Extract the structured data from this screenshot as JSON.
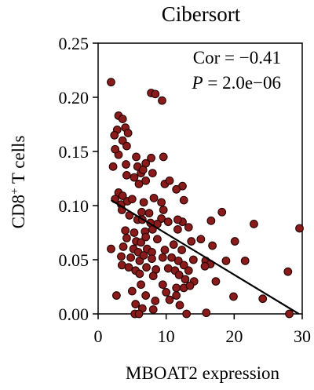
{
  "chart_data": {
    "type": "scatter",
    "title": "Cibersort",
    "xlabel": "MBOAT2 expression",
    "ylabel": {
      "base": "CD8",
      "sup": "+",
      "rest": " T cells"
    },
    "xlim": [
      0,
      30
    ],
    "ylim": [
      0,
      0.25
    ],
    "xticks": [
      0,
      10,
      20,
      30
    ],
    "xtick_labels": [
      "0",
      "10",
      "20",
      "30"
    ],
    "yticks": [
      0,
      0.05,
      0.1,
      0.15,
      0.2,
      0.25
    ],
    "ytick_labels": [
      "0.00",
      "0.05",
      "0.10",
      "0.15",
      "0.20",
      "0.25"
    ],
    "annotations": {
      "cor": "Cor = −0.41",
      "p_label": "P",
      "p_value": " = 2.0e−06"
    },
    "marker_color": "#8b1a1a",
    "marker_edge": "#2a0808",
    "fit_line": {
      "x": [
        1.9,
        29.5
      ],
      "y": [
        0.105,
        0.0
      ],
      "color": "#000000"
    },
    "points": [
      [
        1.9,
        0.214
      ],
      [
        7.8,
        0.204
      ],
      [
        8.4,
        0.203
      ],
      [
        9.4,
        0.197
      ],
      [
        3.0,
        0.183
      ],
      [
        3.6,
        0.18
      ],
      [
        2.8,
        0.17
      ],
      [
        4.0,
        0.172
      ],
      [
        4.4,
        0.167
      ],
      [
        3.6,
        0.16
      ],
      [
        2.4,
        0.165
      ],
      [
        4.2,
        0.155
      ],
      [
        5.6,
        0.145
      ],
      [
        7.8,
        0.144
      ],
      [
        9.6,
        0.145
      ],
      [
        3.0,
        0.147
      ],
      [
        2.5,
        0.152
      ],
      [
        2.2,
        0.136
      ],
      [
        4.1,
        0.138
      ],
      [
        5.8,
        0.136
      ],
      [
        6.3,
        0.13
      ],
      [
        7.0,
        0.139
      ],
      [
        6.6,
        0.133
      ],
      [
        5.3,
        0.126
      ],
      [
        4.2,
        0.128
      ],
      [
        8.0,
        0.13
      ],
      [
        6.0,
        0.12
      ],
      [
        7.0,
        0.123
      ],
      [
        9.8,
        0.12
      ],
      [
        10.5,
        0.123
      ],
      [
        12.4,
        0.118
      ],
      [
        11.5,
        0.115
      ],
      [
        3.0,
        0.112
      ],
      [
        3.6,
        0.109
      ],
      [
        2.5,
        0.106
      ],
      [
        3.4,
        0.101
      ],
      [
        4.3,
        0.104
      ],
      [
        5.0,
        0.106
      ],
      [
        6.7,
        0.103
      ],
      [
        8.2,
        0.107
      ],
      [
        9.3,
        0.103
      ],
      [
        9.6,
        0.096
      ],
      [
        12.6,
        0.105
      ],
      [
        7.5,
        0.093
      ],
      [
        6.4,
        0.094
      ],
      [
        4.6,
        0.091
      ],
      [
        3.5,
        0.096
      ],
      [
        5.8,
        0.087
      ],
      [
        9.3,
        0.088
      ],
      [
        10.3,
        0.085
      ],
      [
        12.4,
        0.085
      ],
      [
        8.7,
        0.083
      ],
      [
        11.7,
        0.087
      ],
      [
        6.5,
        0.087
      ],
      [
        7.7,
        0.084
      ],
      [
        4.0,
        0.077
      ],
      [
        5.3,
        0.075
      ],
      [
        6.9,
        0.076
      ],
      [
        8.0,
        0.078
      ],
      [
        11.7,
        0.078
      ],
      [
        13.3,
        0.08
      ],
      [
        18.2,
        0.094
      ],
      [
        16.6,
        0.086
      ],
      [
        22.9,
        0.083
      ],
      [
        29.6,
        0.079
      ],
      [
        4.2,
        0.07
      ],
      [
        5.6,
        0.067
      ],
      [
        6.3,
        0.066
      ],
      [
        7.0,
        0.071
      ],
      [
        8.7,
        0.069
      ],
      [
        11.1,
        0.064
      ],
      [
        13.7,
        0.067
      ],
      [
        15.1,
        0.069
      ],
      [
        20.1,
        0.067
      ],
      [
        3.7,
        0.062
      ],
      [
        5.2,
        0.06
      ],
      [
        1.9,
        0.06
      ],
      [
        5.9,
        0.057
      ],
      [
        7.2,
        0.06
      ],
      [
        7.9,
        0.057
      ],
      [
        9.8,
        0.059
      ],
      [
        12.3,
        0.059
      ],
      [
        16.8,
        0.063
      ],
      [
        3.4,
        0.053
      ],
      [
        4.8,
        0.052
      ],
      [
        6.1,
        0.049
      ],
      [
        6.7,
        0.054
      ],
      [
        7.9,
        0.051
      ],
      [
        9.5,
        0.052
      ],
      [
        10.8,
        0.052
      ],
      [
        11.8,
        0.049
      ],
      [
        14.0,
        0.05
      ],
      [
        15.8,
        0.049
      ],
      [
        16.5,
        0.046
      ],
      [
        18.8,
        0.049
      ],
      [
        21.6,
        0.049
      ],
      [
        12.6,
        0.045
      ],
      [
        3.5,
        0.045
      ],
      [
        4.5,
        0.043
      ],
      [
        5.5,
        0.04
      ],
      [
        7.1,
        0.043
      ],
      [
        8.5,
        0.041
      ],
      [
        10.3,
        0.042
      ],
      [
        11.3,
        0.04
      ],
      [
        13.3,
        0.04
      ],
      [
        15.7,
        0.044
      ],
      [
        27.9,
        0.039
      ],
      [
        6.1,
        0.037
      ],
      [
        8.1,
        0.035
      ],
      [
        11.9,
        0.036
      ],
      [
        12.8,
        0.032
      ],
      [
        14.1,
        0.03
      ],
      [
        17.3,
        0.03
      ],
      [
        6.3,
        0.027
      ],
      [
        9.5,
        0.027
      ],
      [
        11.5,
        0.024
      ],
      [
        12.6,
        0.024
      ],
      [
        13.5,
        0.026
      ],
      [
        5.0,
        0.021
      ],
      [
        10.0,
        0.02
      ],
      [
        11.5,
        0.017
      ],
      [
        2.7,
        0.017
      ],
      [
        7.0,
        0.017
      ],
      [
        10.5,
        0.013
      ],
      [
        19.9,
        0.016
      ],
      [
        24.2,
        0.014
      ],
      [
        8.4,
        0.012
      ],
      [
        5.5,
        0.009
      ],
      [
        12.0,
        0.008
      ],
      [
        6.5,
        0.005
      ],
      [
        8.1,
        0.004
      ],
      [
        15.9,
        0.001
      ],
      [
        28.1,
        0.0
      ],
      [
        5.4,
        0.0
      ],
      [
        6.0,
        0.0
      ],
      [
        13.0,
        0.0
      ]
    ]
  }
}
